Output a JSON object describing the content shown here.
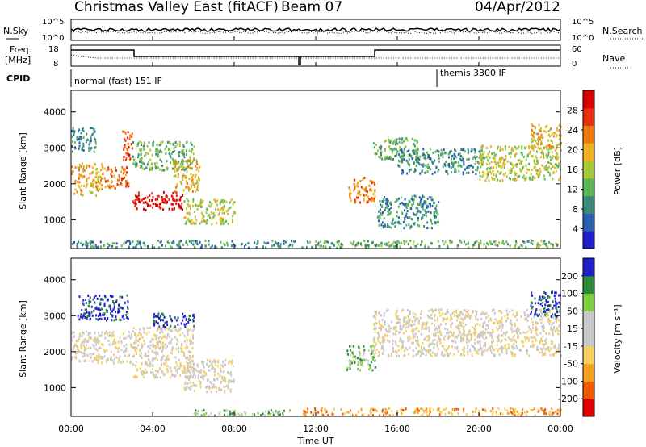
{
  "header": {
    "station": "Christmas Valley East (fitACF)",
    "beam": "Beam 07",
    "date": "04/Apr/2012"
  },
  "strip": {
    "nsky_label": "N.Sky",
    "nsearch_label": "N.Search",
    "nsky_ticks": [
      "10^5",
      "10^0"
    ],
    "nsearch_ticks": [
      "10^5",
      "10^0"
    ],
    "freq_label_1": "Freq.",
    "freq_label_2": "[MHz]",
    "freq_ticks": [
      "18",
      "8"
    ],
    "nave_label": "Nave",
    "nave_ticks": [
      "60",
      "0"
    ],
    "cpid_label": "CPID",
    "cpid_1": "normal (fast) 151 IF",
    "cpid_2": "themis 3300 IF"
  },
  "colors": {
    "axis": "#000000",
    "power_scale": [
      "#1f1fd0",
      "#2b5fb0",
      "#3a8a7a",
      "#5ab85a",
      "#a6c93a",
      "#f0b020",
      "#f07a10",
      "#e83010",
      "#d80000"
    ],
    "velocity_scale": [
      "#e00000",
      "#f05a00",
      "#f4a020",
      "#f8d060",
      "#c8c8c8",
      "#c8c8c8",
      "#80d040",
      "#2a8a3a",
      "#2020c8"
    ]
  },
  "chart_data": [
    {
      "type": "heatmap",
      "name": "power",
      "ylabel": "Slant Range [km]",
      "xlabel": "",
      "x_ticks": [
        "00:00",
        "04:00",
        "08:00",
        "12:00",
        "16:00",
        "20:00",
        "00:00"
      ],
      "y_ticks": [
        "1000",
        "2000",
        "3000",
        "4000"
      ],
      "ylim": [
        200,
        4600
      ],
      "xlim_hours": [
        0,
        24
      ],
      "colorbar": {
        "label": "Power [dB]",
        "ticks": [
          "4",
          "8",
          "12",
          "16",
          "20",
          "24",
          "28"
        ],
        "range": [
          0,
          30
        ]
      },
      "regions": [
        {
          "x0": 0.0,
          "x1": 1.5,
          "y0": 1700,
          "y1": 2600,
          "level": 5
        },
        {
          "x0": 0.0,
          "x1": 1.2,
          "y0": 2900,
          "y1": 3600,
          "level": 2
        },
        {
          "x0": 1.5,
          "x1": 2.8,
          "y0": 1900,
          "y1": 2500,
          "level": 6
        },
        {
          "x0": 2.5,
          "x1": 3.0,
          "y0": 2600,
          "y1": 3500,
          "level": 7
        },
        {
          "x0": 3.0,
          "x1": 5.5,
          "y0": 1300,
          "y1": 1800,
          "level": 8
        },
        {
          "x0": 3.0,
          "x1": 6.0,
          "y0": 2400,
          "y1": 3200,
          "level": 3
        },
        {
          "x0": 5.0,
          "x1": 6.3,
          "y0": 1800,
          "y1": 2700,
          "level": 5
        },
        {
          "x0": 5.5,
          "x1": 8.0,
          "y0": 900,
          "y1": 1600,
          "level": 4
        },
        {
          "x0": 13.5,
          "x1": 14.9,
          "y0": 1500,
          "y1": 2200,
          "level": 6
        },
        {
          "x0": 14.8,
          "x1": 17.0,
          "y0": 2700,
          "y1": 3300,
          "level": 3
        },
        {
          "x0": 15.0,
          "x1": 18.0,
          "y0": 800,
          "y1": 1700,
          "level": 2
        },
        {
          "x0": 16.0,
          "x1": 20.0,
          "y0": 2300,
          "y1": 3000,
          "level": 2
        },
        {
          "x0": 20.0,
          "x1": 24.0,
          "y0": 2100,
          "y1": 3100,
          "level": 4
        },
        {
          "x0": 22.5,
          "x1": 24.0,
          "y0": 3000,
          "y1": 3700,
          "level": 5
        },
        {
          "x0": 0.0,
          "x1": 11.0,
          "y0": 250,
          "y1": 450,
          "level": 2
        },
        {
          "x0": 11.2,
          "x1": 24.0,
          "y0": 250,
          "y1": 450,
          "level": 3
        }
      ]
    },
    {
      "type": "heatmap",
      "name": "velocity",
      "ylabel": "Slant Range [km]",
      "xlabel": "Time UT",
      "x_ticks": [
        "00:00",
        "04:00",
        "08:00",
        "12:00",
        "16:00",
        "20:00",
        "00:00"
      ],
      "y_ticks": [
        "1000",
        "2000",
        "3000",
        "4000"
      ],
      "ylim": [
        200,
        4600
      ],
      "xlim_hours": [
        0,
        24
      ],
      "colorbar": {
        "label": "Velocity [m s⁻¹]",
        "ticks": [
          "200",
          "100",
          "50",
          "15",
          "-15",
          "-50",
          "-100",
          "-200"
        ],
        "range": [
          -250,
          250
        ]
      },
      "regions": [
        {
          "x0": 0.0,
          "x1": 3.0,
          "y0": 1700,
          "y1": 2600,
          "level": 4
        },
        {
          "x0": 0.3,
          "x1": 2.8,
          "y0": 2900,
          "y1": 3600,
          "level": 8
        },
        {
          "x0": 3.0,
          "x1": 6.0,
          "y0": 1300,
          "y1": 2700,
          "level": 4
        },
        {
          "x0": 4.0,
          "x1": 6.0,
          "y0": 2700,
          "y1": 3100,
          "level": 8
        },
        {
          "x0": 5.5,
          "x1": 8.0,
          "y0": 900,
          "y1": 1800,
          "level": 4
        },
        {
          "x0": 13.5,
          "x1": 14.9,
          "y0": 1500,
          "y1": 2200,
          "level": 6
        },
        {
          "x0": 14.8,
          "x1": 24.0,
          "y0": 1900,
          "y1": 3200,
          "level": 4
        },
        {
          "x0": 22.5,
          "x1": 24.0,
          "y0": 3000,
          "y1": 3700,
          "level": 8
        },
        {
          "x0": 6.0,
          "x1": 11.0,
          "y0": 250,
          "y1": 400,
          "level": 6
        },
        {
          "x0": 11.2,
          "x1": 24.0,
          "y0": 250,
          "y1": 450,
          "level": 2
        }
      ]
    }
  ]
}
